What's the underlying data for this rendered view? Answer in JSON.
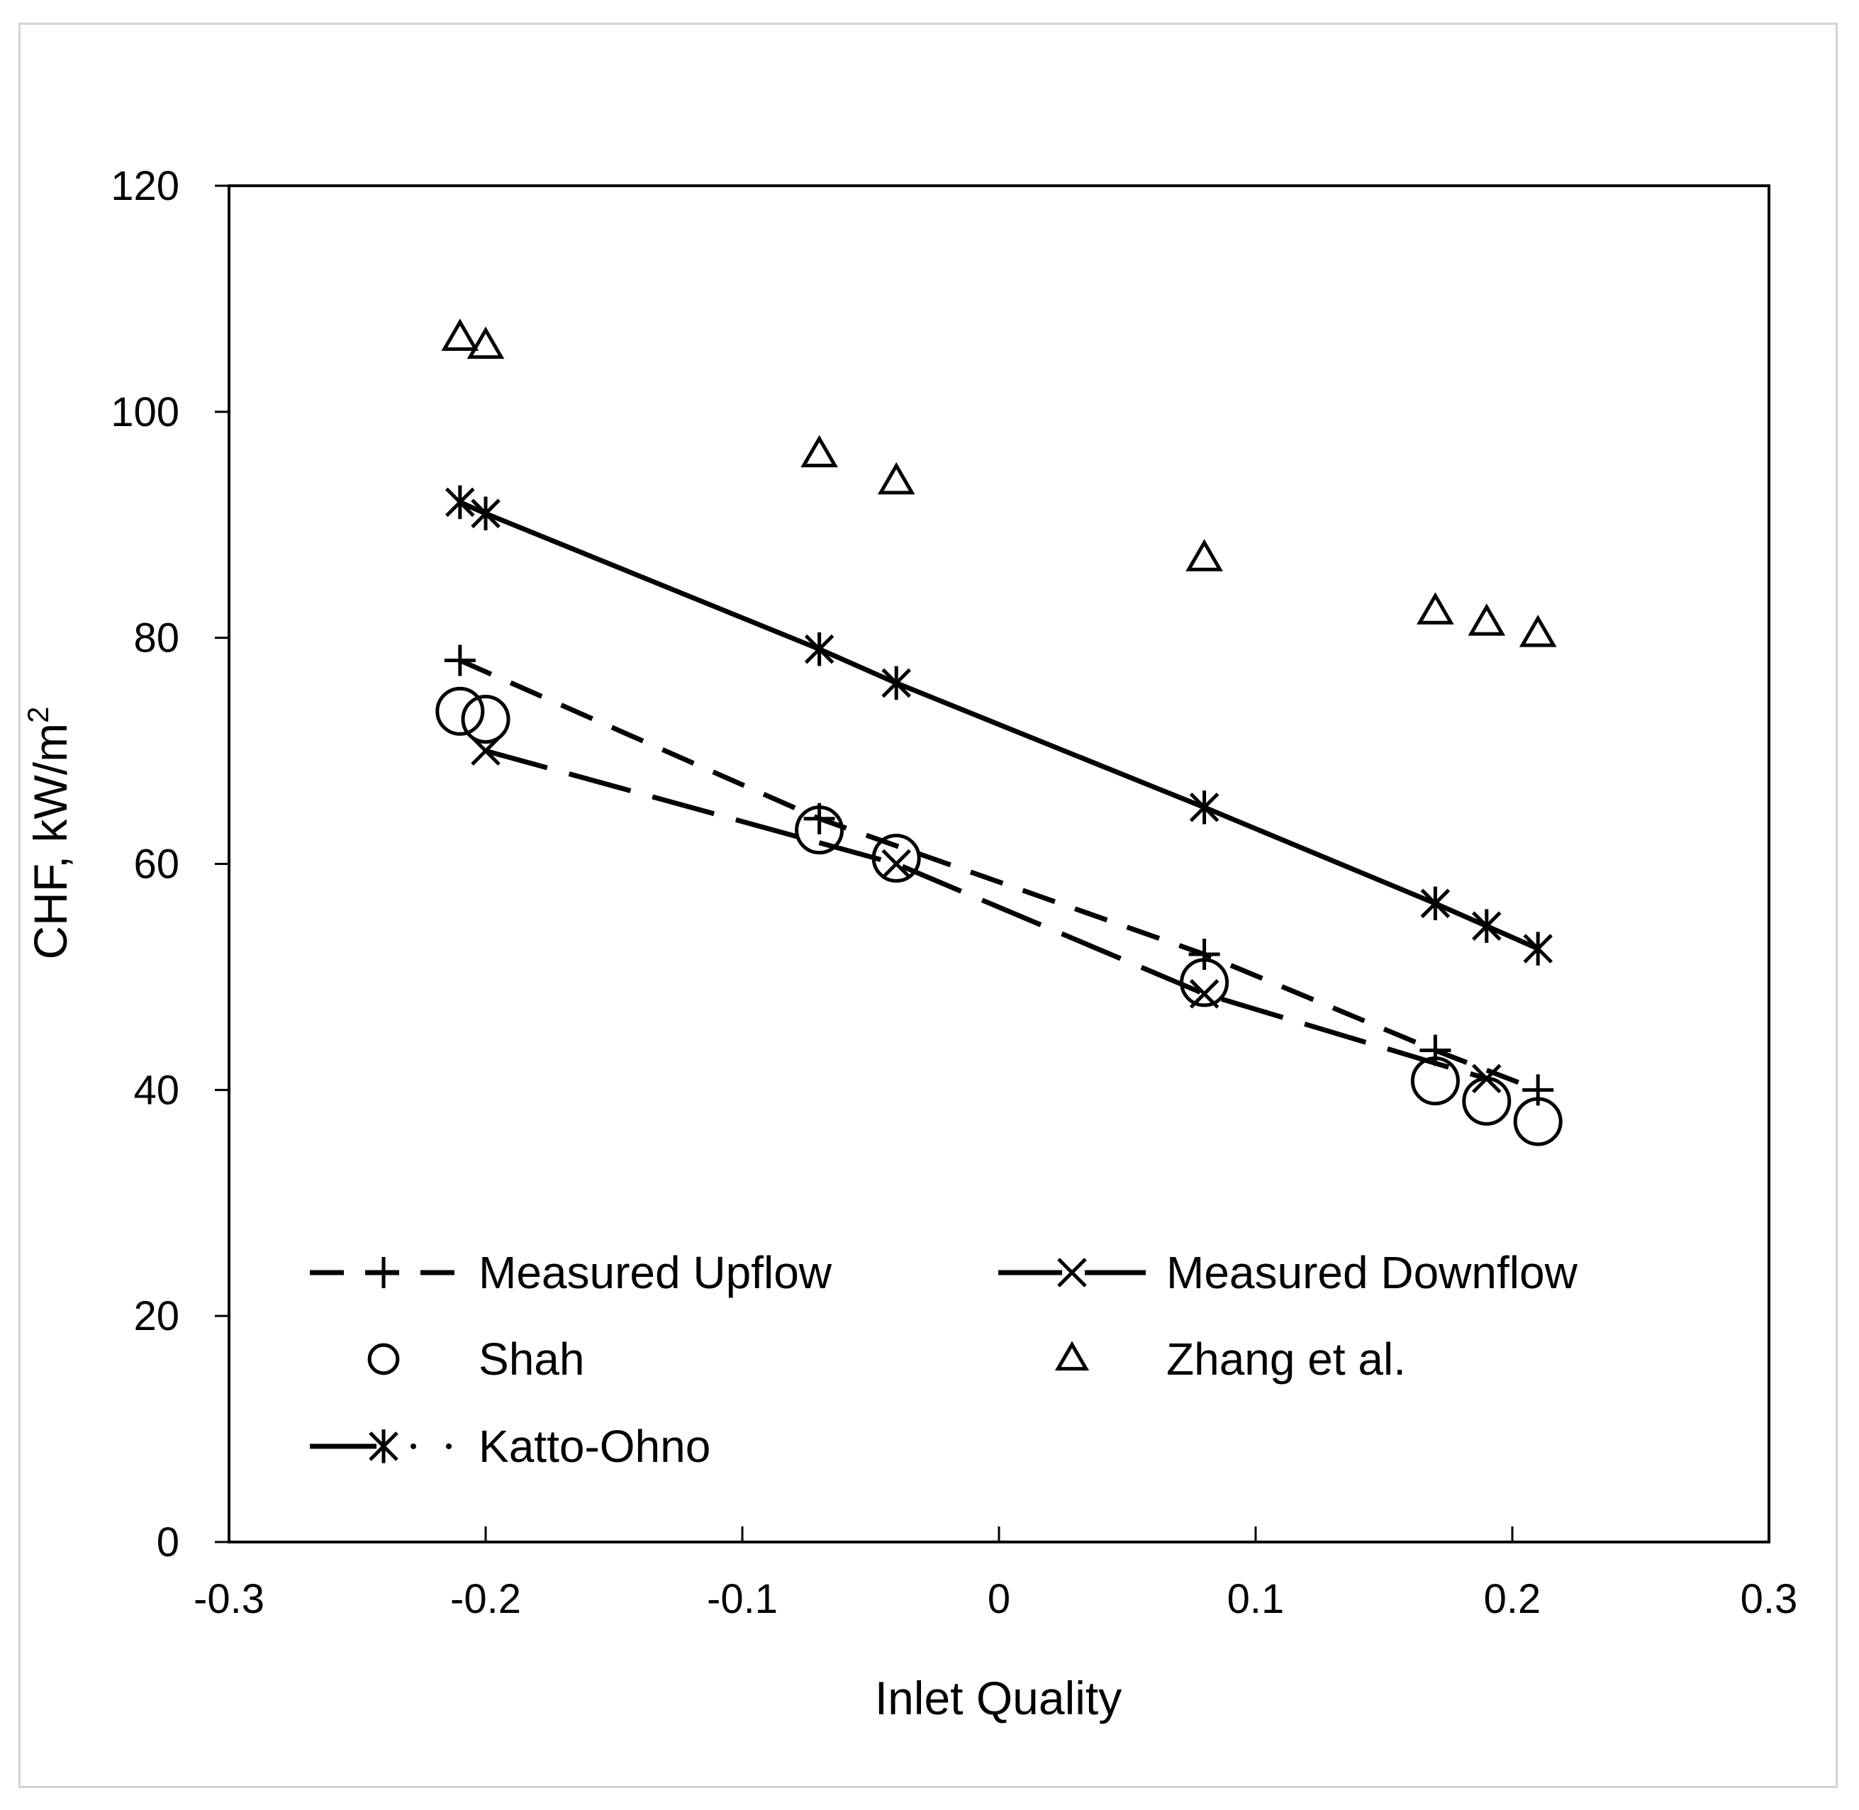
{
  "chart_data": {
    "type": "scatter",
    "title": "",
    "xlabel": "Inlet Quality",
    "ylabel": "CHF, kW/m",
    "ylabel_superscript": "2",
    "xlim": [
      -0.3,
      0.3
    ],
    "ylim": [
      0,
      120
    ],
    "grid": false,
    "legend_position": "bottom-left, inside plot",
    "xticks": [
      -0.3,
      -0.2,
      -0.1,
      0,
      0.1,
      0.2,
      0.3
    ],
    "xtick_labels": [
      "-0.3",
      "-0.2",
      "-0.1",
      "0",
      "0.1",
      "0.2",
      "0.3"
    ],
    "yticks": [
      0,
      20,
      40,
      60,
      80,
      100,
      120
    ],
    "ytick_labels": [
      "0",
      "20",
      "40",
      "60",
      "80",
      "100",
      "120"
    ],
    "series": [
      {
        "name": "Measured Upflow",
        "marker": "plus",
        "line": "dashed",
        "x": [
          -0.21,
          -0.07,
          0.08,
          0.17,
          0.21
        ],
        "y": [
          78,
          64,
          52,
          43.5,
          40
        ]
      },
      {
        "name": "Measured Downflow",
        "marker": "x",
        "line": "long-dash",
        "x": [
          -0.2,
          -0.04,
          0.08,
          0.19
        ],
        "y": [
          70,
          60,
          48.5,
          41
        ]
      },
      {
        "name": "Shah",
        "marker": "circle",
        "line": "none",
        "x": [
          -0.21,
          -0.2,
          -0.07,
          -0.04,
          0.08,
          0.17,
          0.19,
          0.21
        ],
        "y": [
          73.5,
          72.8,
          63,
          60.5,
          49.5,
          40.8,
          39,
          37.2
        ]
      },
      {
        "name": "Zhang et al.",
        "marker": "triangle",
        "line": "none",
        "x": [
          -0.21,
          -0.2,
          -0.07,
          -0.04,
          0.08,
          0.17,
          0.19,
          0.21
        ],
        "y": [
          106.5,
          105.8,
          96.2,
          93.8,
          87,
          82.3,
          81.3,
          80.3
        ]
      },
      {
        "name": "Katto-Ohno",
        "marker": "asterisk",
        "line": "solid",
        "x": [
          -0.21,
          -0.2,
          -0.07,
          -0.04,
          0.08,
          0.17,
          0.19,
          0.21
        ],
        "y": [
          92,
          91,
          79,
          76,
          65,
          56.5,
          54.5,
          52.5
        ]
      }
    ]
  }
}
